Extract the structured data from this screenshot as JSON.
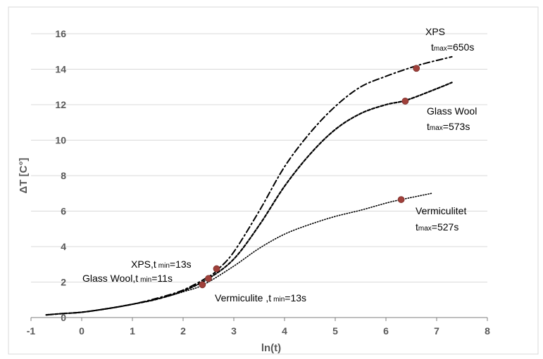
{
  "chart_data": {
    "type": "line",
    "xlabel": "ln(t)",
    "ylabel": "ΔT [C°]",
    "xlim": [
      -1,
      8
    ],
    "ylim": [
      0,
      16
    ],
    "x_ticks": [
      -1,
      0,
      1,
      2,
      3,
      4,
      5,
      6,
      7,
      8
    ],
    "y_ticks": [
      0,
      2,
      4,
      6,
      8,
      10,
      12,
      14,
      16
    ],
    "grid": "horizontal",
    "series": [
      {
        "name": "XPS",
        "style": "dash-dot",
        "x": [
          -0.7,
          -0.4,
          0,
          0.5,
          1,
          1.5,
          2,
          2.5,
          2.7,
          3,
          3.5,
          4,
          4.5,
          5,
          5.5,
          6,
          6.5,
          6.8,
          7.3
        ],
        "y": [
          0.15,
          0.22,
          0.3,
          0.5,
          0.75,
          1.1,
          1.55,
          2.3,
          2.75,
          3.7,
          6.0,
          8.5,
          10.4,
          11.9,
          13.0,
          13.6,
          14.1,
          14.35,
          14.7
        ],
        "min_point": {
          "x": 2.66,
          "y": 2.75
        },
        "max_point": {
          "x": 6.6,
          "y": 14.05
        }
      },
      {
        "name": "Glass Wool",
        "style": "dashed",
        "x": [
          -0.7,
          -0.4,
          0,
          0.5,
          1,
          1.5,
          2,
          2.5,
          3,
          3.5,
          4,
          4.5,
          5,
          5.5,
          6,
          6.4,
          7,
          7.3
        ],
        "y": [
          0.15,
          0.22,
          0.3,
          0.5,
          0.75,
          1.05,
          1.5,
          2.2,
          3.3,
          5.2,
          7.4,
          9.2,
          10.6,
          11.5,
          12.0,
          12.25,
          12.9,
          13.25
        ],
        "min_point": {
          "x": 2.5,
          "y": 2.2
        },
        "max_point": {
          "x": 6.38,
          "y": 12.2
        }
      },
      {
        "name": "Vermiculite",
        "style": "dotted",
        "x": [
          -0.7,
          -0.4,
          0,
          0.5,
          1,
          1.5,
          2,
          2.4,
          3,
          3.5,
          4,
          4.5,
          5,
          5.5,
          6,
          6.3,
          6.9
        ],
        "y": [
          0.15,
          0.22,
          0.3,
          0.5,
          0.75,
          1.05,
          1.45,
          1.85,
          2.9,
          3.9,
          4.7,
          5.25,
          5.7,
          6.05,
          6.45,
          6.65,
          7.0
        ],
        "min_point": {
          "x": 2.38,
          "y": 1.85
        },
        "max_point": {
          "x": 6.3,
          "y": 6.65
        }
      }
    ],
    "annotations": {
      "xps_max_name": "XPS",
      "xps_max_t": "t",
      "xps_max_sub": "max",
      "xps_max_val": "=650s",
      "gw_max_name": "Glass Wool",
      "gw_max_t": "t",
      "gw_max_sub": "max",
      "gw_max_val": "=573s",
      "verm_max_name": "Vermiculitet",
      "verm_max_t": "t",
      "verm_max_sub": "max",
      "verm_max_val": "=527s",
      "xps_min_name": "XPS,t",
      "xps_min_sub": "min",
      "xps_min_val": "=13s",
      "gw_min_name": "Glass Wool,t",
      "gw_min_sub": "min",
      "gw_min_val": "=11s",
      "verm_min_name": "Vermiculite ,t",
      "verm_min_sub": "min",
      "verm_min_val": "=13s"
    },
    "colors": {
      "curve": "#000000",
      "marker": "#a0403a",
      "grid": "#d9d9d9",
      "axis": "#595959"
    }
  }
}
